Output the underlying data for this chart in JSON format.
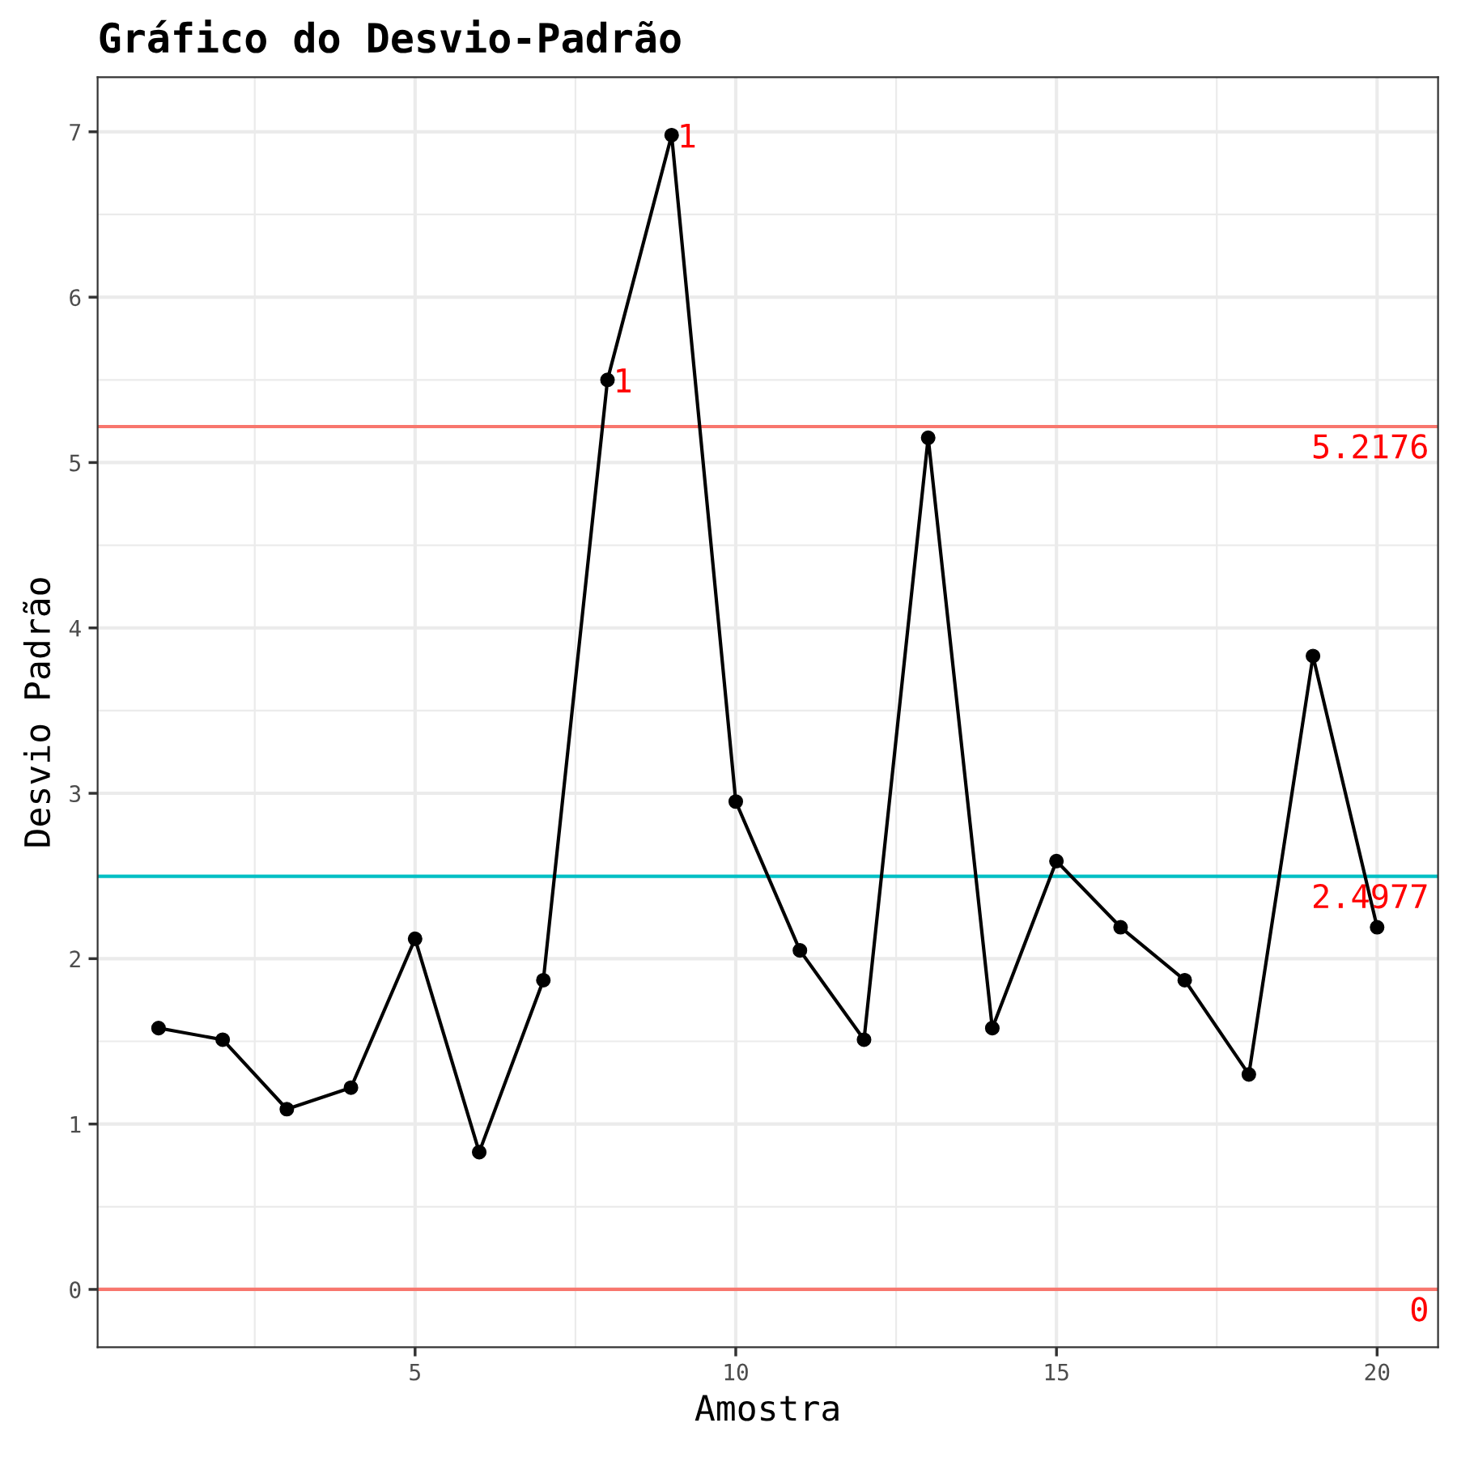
{
  "chart_data": {
    "type": "line",
    "title": "Gráfico do Desvio-Padrão",
    "xlabel": "Amostra",
    "ylabel": "Desvio Padrão",
    "x": [
      1,
      2,
      3,
      4,
      5,
      6,
      7,
      8,
      9,
      10,
      11,
      12,
      13,
      14,
      15,
      16,
      17,
      18,
      19,
      20
    ],
    "series": [
      {
        "color": "#000000",
        "values": [
          1.58,
          1.51,
          1.09,
          1.22,
          2.12,
          0.83,
          1.87,
          5.5,
          6.98,
          2.95,
          2.05,
          1.51,
          5.15,
          1.58,
          2.59,
          2.19,
          1.87,
          1.3,
          3.83,
          2.19
        ]
      }
    ],
    "xlim": [
      0.05,
      20.95
    ],
    "xticks": [
      5,
      10,
      15,
      20
    ],
    "ylim": [
      -0.35,
      7.33
    ],
    "yticks": [
      0,
      1,
      2,
      3,
      4,
      5,
      6,
      7
    ],
    "ref_lines": [
      {
        "axis": "y",
        "value": 5.2176,
        "label": "5.2176",
        "color": "#f8766d"
      },
      {
        "axis": "y",
        "value": 2.4977,
        "label": "2.4977",
        "color": "#00bfc4"
      },
      {
        "axis": "y",
        "value": 0,
        "label": "0",
        "color": "#f8766d"
      }
    ],
    "annotations": [
      {
        "text": "1",
        "x": 8,
        "y": 5.5
      },
      {
        "text": "1",
        "x": 9,
        "y": 6.98
      }
    ],
    "grid": true,
    "marker": "circle",
    "line_style": "solid"
  }
}
